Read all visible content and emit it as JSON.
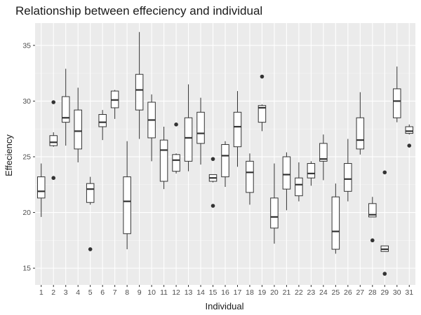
{
  "chart_data": {
    "type": "boxplot",
    "title": "Relationship between effeciency and individual",
    "xlabel": "Individual",
    "ylabel": "Effeciency",
    "ylim": [
      13.5,
      37.0
    ],
    "yticks": [
      15,
      20,
      25,
      30,
      35
    ],
    "grid": true,
    "legend": "none",
    "colors": {
      "panel": "#ebebeb",
      "grid_major": "#ffffff",
      "grid_minor": "#f5f5f5",
      "box_fill": "#ffffff",
      "box_line": "#333333",
      "outlier": "#333333"
    },
    "categories": [
      "1",
      "2",
      "3",
      "4",
      "5",
      "6",
      "7",
      "8",
      "9",
      "10",
      "11",
      "12",
      "13",
      "14",
      "15",
      "16",
      "17",
      "18",
      "19",
      "20",
      "21",
      "22",
      "23",
      "24",
      "25",
      "26",
      "27",
      "28",
      "29",
      "30",
      "31"
    ],
    "boxes": [
      {
        "x": "1",
        "min": 19.6,
        "q1": 21.3,
        "median": 21.9,
        "q3": 23.2,
        "max": 24.4,
        "outliers": []
      },
      {
        "x": "2",
        "min": 25.9,
        "q1": 26.0,
        "median": 26.3,
        "q3": 26.9,
        "max": 27.2,
        "outliers": [
          29.9,
          23.1
        ]
      },
      {
        "x": "3",
        "min": 26.0,
        "q1": 28.1,
        "median": 28.5,
        "q3": 30.4,
        "max": 32.9,
        "outliers": []
      },
      {
        "x": "4",
        "min": 24.5,
        "q1": 25.7,
        "median": 27.3,
        "q3": 29.2,
        "max": 31.2,
        "outliers": []
      },
      {
        "x": "5",
        "min": 20.7,
        "q1": 20.9,
        "median": 22.1,
        "q3": 22.6,
        "max": 23.2,
        "outliers": [
          16.7
        ]
      },
      {
        "x": "6",
        "min": 26.5,
        "q1": 27.7,
        "median": 28.1,
        "q3": 28.8,
        "max": 29.2,
        "outliers": []
      },
      {
        "x": "7",
        "min": 28.4,
        "q1": 29.4,
        "median": 30.1,
        "q3": 30.9,
        "max": 31.0,
        "outliers": []
      },
      {
        "x": "8",
        "min": 16.7,
        "q1": 18.1,
        "median": 21.0,
        "q3": 23.2,
        "max": 26.4,
        "outliers": []
      },
      {
        "x": "9",
        "min": 26.6,
        "q1": 29.2,
        "median": 31.0,
        "q3": 32.4,
        "max": 36.2,
        "outliers": []
      },
      {
        "x": "10",
        "min": 24.6,
        "q1": 26.7,
        "median": 28.3,
        "q3": 29.9,
        "max": 30.6,
        "outliers": []
      },
      {
        "x": "11",
        "min": 22.1,
        "q1": 22.8,
        "median": 25.6,
        "q3": 26.5,
        "max": 27.7,
        "outliers": []
      },
      {
        "x": "12",
        "min": 23.5,
        "q1": 23.7,
        "median": 24.7,
        "q3": 25.2,
        "max": 25.3,
        "outliers": [
          27.9
        ]
      },
      {
        "x": "13",
        "min": 23.7,
        "q1": 24.6,
        "median": 26.7,
        "q3": 28.5,
        "max": 31.5,
        "outliers": []
      },
      {
        "x": "14",
        "min": 24.3,
        "q1": 26.2,
        "median": 27.1,
        "q3": 29.0,
        "max": 30.3,
        "outliers": []
      },
      {
        "x": "15",
        "min": 22.7,
        "q1": 22.8,
        "median": 23.1,
        "q3": 23.4,
        "max": 23.4,
        "outliers": [
          24.8,
          20.6
        ]
      },
      {
        "x": "16",
        "min": 22.3,
        "q1": 23.2,
        "median": 25.1,
        "q3": 26.1,
        "max": 26.4,
        "outliers": []
      },
      {
        "x": "17",
        "min": 24.1,
        "q1": 25.9,
        "median": 27.7,
        "q3": 29.0,
        "max": 30.9,
        "outliers": []
      },
      {
        "x": "18",
        "min": 20.7,
        "q1": 21.8,
        "median": 23.6,
        "q3": 24.6,
        "max": 25.3,
        "outliers": []
      },
      {
        "x": "19",
        "min": 27.3,
        "q1": 28.1,
        "median": 29.4,
        "q3": 29.6,
        "max": 29.7,
        "outliers": [
          32.2
        ]
      },
      {
        "x": "20",
        "min": 17.2,
        "q1": 18.6,
        "median": 19.6,
        "q3": 21.3,
        "max": 24.4,
        "outliers": []
      },
      {
        "x": "21",
        "min": 20.2,
        "q1": 22.1,
        "median": 23.4,
        "q3": 25.0,
        "max": 25.4,
        "outliers": []
      },
      {
        "x": "22",
        "min": 21.0,
        "q1": 21.5,
        "median": 22.5,
        "q3": 23.1,
        "max": 24.5,
        "outliers": []
      },
      {
        "x": "23",
        "min": 22.4,
        "q1": 23.1,
        "median": 23.5,
        "q3": 24.4,
        "max": 24.6,
        "outliers": []
      },
      {
        "x": "24",
        "min": 22.9,
        "q1": 24.6,
        "median": 24.8,
        "q3": 26.2,
        "max": 27.0,
        "outliers": []
      },
      {
        "x": "25",
        "min": 16.3,
        "q1": 16.7,
        "median": 18.3,
        "q3": 21.4,
        "max": 22.6,
        "outliers": []
      },
      {
        "x": "26",
        "min": 21.0,
        "q1": 21.9,
        "median": 23.0,
        "q3": 24.4,
        "max": 26.6,
        "outliers": []
      },
      {
        "x": "27",
        "min": 25.2,
        "q1": 25.7,
        "median": 26.5,
        "q3": 28.5,
        "max": 30.8,
        "outliers": []
      },
      {
        "x": "28",
        "min": 19.6,
        "q1": 19.6,
        "median": 19.8,
        "q3": 20.8,
        "max": 21.4,
        "outliers": [
          17.5
        ]
      },
      {
        "x": "29",
        "min": 16.5,
        "q1": 16.5,
        "median": 16.7,
        "q3": 17.0,
        "max": 17.0,
        "outliers": [
          23.6,
          14.5
        ]
      },
      {
        "x": "30",
        "min": 28.1,
        "q1": 28.5,
        "median": 30.0,
        "q3": 31.1,
        "max": 33.1,
        "outliers": []
      },
      {
        "x": "31",
        "min": 27.0,
        "q1": 27.1,
        "median": 27.3,
        "q3": 27.7,
        "max": 27.9,
        "outliers": [
          26.0
        ]
      }
    ]
  }
}
